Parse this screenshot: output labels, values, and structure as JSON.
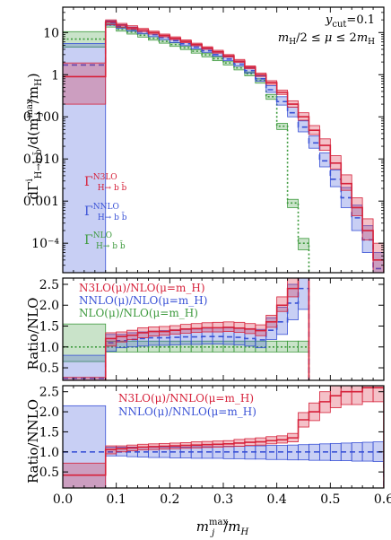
{
  "chart_data": [
    {
      "type": "line",
      "panel": "distribution",
      "title": "",
      "ylabel": "dΓⁱ_{H→b b̄}/d(m_j^max/m_H)",
      "yscale": "log",
      "ylim": [
        2e-05,
        40
      ],
      "xlim": [
        0.0,
        0.6
      ],
      "yticks": [
        "10",
        "1",
        "0.100",
        "0.010",
        "0.001",
        "10⁻⁴"
      ],
      "annotations": [
        "y_cut=0.1",
        "m_H/2 ≤ μ ≤ 2m_H"
      ],
      "legend_position": "middle-left",
      "bin_edges": [
        0.0,
        0.08,
        0.1,
        0.12,
        0.14,
        0.16,
        0.18,
        0.2,
        0.22,
        0.24,
        0.26,
        0.28,
        0.3,
        0.32,
        0.34,
        0.36,
        0.38,
        0.4,
        0.42,
        0.44,
        0.46,
        0.48,
        0.5,
        0.52,
        0.54,
        0.56,
        0.58,
        0.6
      ],
      "series": [
        {
          "name": "Γ^{N3LO}_{H→b b̄}",
          "color": "#d6213a",
          "style": "solid",
          "values": [
            0.9,
            18,
            15,
            13,
            11.5,
            10,
            8.5,
            7.3,
            6.2,
            5.2,
            4.3,
            3.5,
            2.8,
            2.1,
            1.5,
            1.0,
            0.65,
            0.38,
            0.2,
            0.1,
            0.048,
            0.021,
            0.008,
            0.0026,
            0.0007,
            0.0002,
            4e-05
          ],
          "lower": [
            0.2,
            15.5,
            13.5,
            12,
            10.5,
            9.2,
            7.9,
            6.8,
            5.8,
            4.85,
            4.0,
            3.25,
            2.6,
            1.95,
            1.38,
            0.91,
            0.59,
            0.34,
            0.17,
            0.083,
            0.038,
            0.016,
            0.0058,
            0.0018,
            0.00045,
            0.00012,
            2e-05
          ],
          "upper": [
            1.9,
            20,
            16.5,
            14.5,
            12.5,
            10.8,
            9.2,
            7.9,
            6.7,
            5.6,
            4.6,
            3.8,
            3.0,
            2.3,
            1.62,
            1.09,
            0.72,
            0.43,
            0.24,
            0.125,
            0.062,
            0.03,
            0.012,
            0.0042,
            0.0012,
            0.00038,
            0.0001
          ]
        },
        {
          "name": "Γ^{NNLO}_{H→b b̄}",
          "color": "#3a52d6",
          "style": "dashed",
          "values": [
            1.7,
            17,
            14,
            12,
            10.3,
            8.9,
            7.6,
            6.4,
            5.4,
            4.5,
            3.7,
            3.0,
            2.35,
            1.78,
            1.25,
            0.8,
            0.44,
            0.23,
            0.125,
            0.057,
            0.024,
            0.009,
            0.0033,
            0.0012,
            0.0004,
            0.00012,
            2.5e-05
          ],
          "lower": [
            2e-05,
            15,
            12.5,
            10.8,
            9.3,
            8.0,
            6.8,
            5.8,
            4.9,
            4.1,
            3.4,
            2.75,
            2.15,
            1.6,
            1.1,
            0.7,
            0.38,
            0.19,
            0.1,
            0.044,
            0.018,
            0.0065,
            0.0022,
            0.0007,
            0.0002,
            6e-05,
            2e-05
          ],
          "upper": [
            5.5,
            19,
            15.5,
            13.5,
            11.5,
            10.0,
            8.5,
            7.2,
            6.1,
            5.1,
            4.2,
            3.4,
            2.7,
            2.05,
            1.45,
            0.95,
            0.55,
            0.3,
            0.17,
            0.08,
            0.035,
            0.014,
            0.0055,
            0.0021,
            0.0008,
            0.00026,
            6e-05
          ]
        },
        {
          "name": "Γ^{NLO}_{H→b b̄}",
          "color": "#3d9a3d",
          "style": "dotted",
          "values": [
            7,
            15,
            12,
            10.2,
            8.6,
            7.3,
            6.2,
            5.2,
            4.35,
            3.6,
            2.95,
            2.4,
            1.9,
            1.45,
            1.05,
            0.72,
            0.3,
            0.06,
            0.0009,
            0.0001
          ],
          "lower": [
            4.5,
            13.5,
            10.8,
            9.2,
            7.8,
            6.6,
            5.6,
            4.7,
            3.95,
            3.25,
            2.65,
            2.15,
            1.7,
            1.3,
            0.94,
            0.63,
            0.26,
            0.05,
            0.0007,
            7e-05
          ],
          "upper": [
            10.5,
            16.5,
            13.2,
            11.2,
            9.4,
            8.0,
            6.8,
            5.7,
            4.75,
            3.95,
            3.25,
            2.65,
            2.1,
            1.6,
            1.16,
            0.8,
            0.34,
            0.07,
            0.0011,
            0.00013
          ]
        }
      ]
    },
    {
      "type": "line",
      "panel": "ratio-nlo",
      "ylabel": "Ratio/NLO",
      "ylim": [
        0.2,
        2.65
      ],
      "xlim": [
        0.0,
        0.6
      ],
      "yticks": [
        "0.5",
        "1.0",
        "1.5",
        "2.0",
        "2.5"
      ],
      "legend_position": "top-left",
      "bin_edges": [
        0.0,
        0.08,
        0.1,
        0.12,
        0.14,
        0.16,
        0.18,
        0.2,
        0.22,
        0.24,
        0.26,
        0.28,
        0.3,
        0.32,
        0.34,
        0.36,
        0.38,
        0.4,
        0.42,
        0.44,
        0.46
      ],
      "series": [
        {
          "name": "N3LO(μ)/NLO(μ=m_H)",
          "color": "#d6213a",
          "style": "solid",
          "values": [
            0.13,
            1.2,
            1.25,
            1.28,
            1.34,
            1.37,
            1.37,
            1.4,
            1.43,
            1.44,
            1.46,
            1.46,
            1.47,
            1.45,
            1.43,
            1.39,
            1.6,
            2.0,
            2.4,
            3.0
          ],
          "lower": [
            0.03,
            1.02,
            1.12,
            1.18,
            1.22,
            1.26,
            1.28,
            1.31,
            1.33,
            1.35,
            1.36,
            1.36,
            1.37,
            1.35,
            1.32,
            1.27,
            1.47,
            1.85,
            2.2,
            2.65
          ],
          "upper": [
            0.27,
            1.34,
            1.36,
            1.4,
            1.46,
            1.48,
            1.49,
            1.51,
            1.54,
            1.56,
            1.58,
            1.59,
            1.6,
            1.59,
            1.56,
            1.53,
            1.76,
            2.2,
            2.7,
            3.3
          ]
        },
        {
          "name": "NNLO(μ)/NLO(μ=m_H)",
          "color": "#3a52d6",
          "style": "dashed",
          "values": [
            0.25,
            1.1,
            1.15,
            1.18,
            1.2,
            1.22,
            1.22,
            1.23,
            1.24,
            1.24,
            1.25,
            1.25,
            1.24,
            1.23,
            1.2,
            1.17,
            1.4,
            1.6,
            2.05,
            2.4
          ],
          "lower": [
            0.0,
            0.9,
            0.98,
            1.0,
            1.02,
            1.04,
            1.04,
            1.05,
            1.06,
            1.06,
            1.07,
            1.07,
            1.06,
            1.05,
            1.02,
            0.98,
            1.18,
            1.3,
            1.65,
            1.9
          ],
          "upper": [
            0.8,
            1.3,
            1.3,
            1.34,
            1.36,
            1.38,
            1.39,
            1.41,
            1.42,
            1.43,
            1.45,
            1.46,
            1.46,
            1.46,
            1.44,
            1.42,
            1.7,
            1.95,
            2.5,
            2.95
          ]
        },
        {
          "name": "NLO(μ)/NLO(μ=m_H)",
          "color": "#3d9a3d",
          "style": "dotted",
          "values": [
            1.0,
            1.0,
            1.0,
            1.0,
            1.0,
            1.0,
            1.0,
            1.0,
            1.0,
            1.0,
            1.0,
            1.0,
            1.0,
            1.0,
            1.0,
            1.0,
            1.0,
            1.0,
            1.0,
            1.0
          ],
          "lower": [
            0.65,
            0.88,
            0.88,
            0.88,
            0.88,
            0.88,
            0.88,
            0.88,
            0.88,
            0.88,
            0.88,
            0.88,
            0.88,
            0.88,
            0.88,
            0.88,
            0.88,
            0.88,
            0.88,
            0.88
          ],
          "upper": [
            1.55,
            1.14,
            1.14,
            1.14,
            1.14,
            1.14,
            1.14,
            1.14,
            1.14,
            1.14,
            1.14,
            1.14,
            1.14,
            1.14,
            1.14,
            1.14,
            1.14,
            1.14,
            1.14,
            1.14
          ]
        }
      ]
    },
    {
      "type": "line",
      "panel": "ratio-nnlo",
      "ylabel": "Ratio/NNLO",
      "xlabel": "m_j^max/m_H",
      "ylim": [
        0.1,
        2.65
      ],
      "xlim": [
        0.0,
        0.6
      ],
      "xticks": [
        "0.0",
        "0.1",
        "0.2",
        "0.3",
        "0.4",
        "0.5",
        "0.6"
      ],
      "yticks": [
        "0.5",
        "1.0",
        "1.5",
        "2.0",
        "2.5"
      ],
      "legend_position": "top-center",
      "bin_edges": [
        0.0,
        0.08,
        0.1,
        0.12,
        0.14,
        0.16,
        0.18,
        0.2,
        0.22,
        0.24,
        0.26,
        0.28,
        0.3,
        0.32,
        0.34,
        0.36,
        0.38,
        0.4,
        0.42,
        0.44,
        0.46,
        0.48,
        0.5,
        0.52,
        0.54,
        0.56,
        0.58,
        0.6
      ],
      "series": [
        {
          "name": "N3LO(μ)/NNLO(μ=m_H)",
          "color": "#d6213a",
          "style": "solid",
          "values": [
            0.42,
            1.06,
            1.08,
            1.1,
            1.12,
            1.13,
            1.14,
            1.15,
            1.16,
            1.17,
            1.18,
            1.19,
            1.2,
            1.22,
            1.24,
            1.25,
            1.28,
            1.3,
            1.35,
            1.8,
            2.0,
            2.25,
            2.4,
            2.5,
            2.5,
            2.6,
            2.6
          ],
          "lower": [
            0.1,
            0.95,
            1.0,
            1.03,
            1.05,
            1.06,
            1.07,
            1.08,
            1.09,
            1.1,
            1.11,
            1.12,
            1.13,
            1.14,
            1.16,
            1.17,
            1.2,
            1.22,
            1.25,
            1.62,
            1.78,
            1.98,
            2.1,
            2.18,
            2.18,
            2.25,
            2.25
          ],
          "upper": [
            0.72,
            1.15,
            1.15,
            1.17,
            1.19,
            1.2,
            1.21,
            1.22,
            1.23,
            1.25,
            1.26,
            1.27,
            1.28,
            1.31,
            1.33,
            1.35,
            1.38,
            1.4,
            1.46,
            1.98,
            2.22,
            2.5,
            2.65,
            2.8,
            2.8,
            2.9,
            2.9
          ]
        },
        {
          "name": "NNLO(μ)/NNLO(μ=m_H)",
          "color": "#3a52d6",
          "style": "dashed",
          "values": [
            1.0,
            1.0,
            1.0,
            1.0,
            1.0,
            1.0,
            1.0,
            1.0,
            1.0,
            1.0,
            1.0,
            1.0,
            1.0,
            1.0,
            1.0,
            1.0,
            1.0,
            1.0,
            1.0,
            1.0,
            1.0,
            1.0,
            1.0,
            1.0,
            1.0,
            1.0,
            1.0
          ],
          "lower": [
            0.1,
            0.9,
            0.9,
            0.88,
            0.87,
            0.86,
            0.86,
            0.85,
            0.85,
            0.84,
            0.84,
            0.84,
            0.83,
            0.83,
            0.82,
            0.82,
            0.81,
            0.81,
            0.8,
            0.8,
            0.79,
            0.79,
            0.78,
            0.78,
            0.77,
            0.77,
            0.76
          ],
          "upper": [
            2.15,
            1.12,
            1.12,
            1.12,
            1.12,
            1.12,
            1.12,
            1.12,
            1.12,
            1.13,
            1.13,
            1.13,
            1.14,
            1.14,
            1.15,
            1.15,
            1.16,
            1.16,
            1.17,
            1.18,
            1.19,
            1.2,
            1.21,
            1.22,
            1.23,
            1.24,
            1.25
          ]
        }
      ]
    }
  ]
}
